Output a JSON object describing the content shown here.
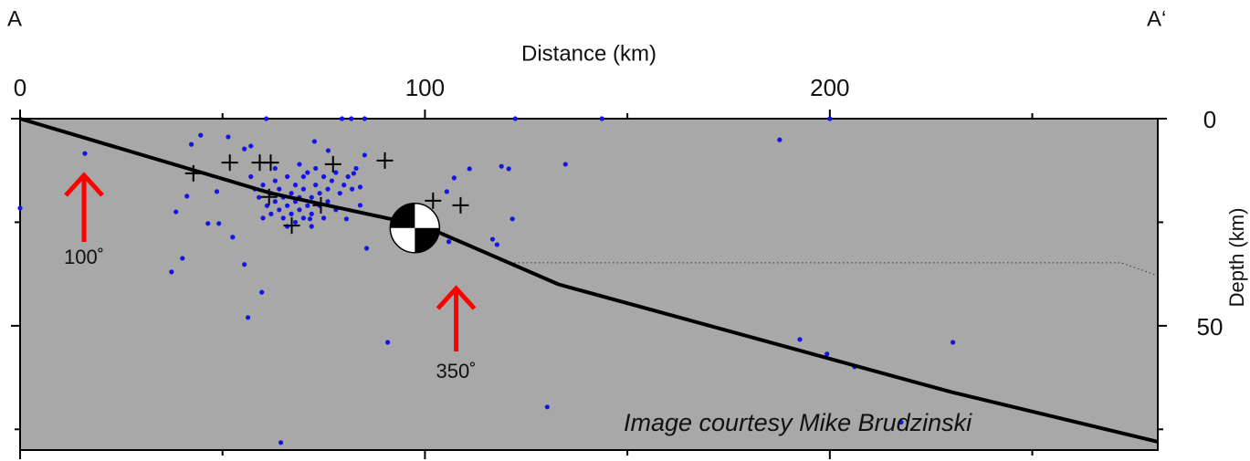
{
  "chart_data": {
    "type": "scatter",
    "x_label": "Distance (km)",
    "y_label": "Depth (km)",
    "corner_labels": [
      "A",
      "A‘"
    ],
    "credit": "Image courtesy Mike Brudzinski",
    "xlim": [
      0,
      281
    ],
    "ylim": [
      0,
      80
    ],
    "y_inverted": true,
    "xticks": [
      0,
      100,
      200
    ],
    "xminorticks": [
      50,
      150,
      250
    ],
    "yticks": [
      0,
      50
    ],
    "yminorticks": [
      25,
      75
    ],
    "background": "#a8a8a8",
    "series": [
      {
        "name": "earthquakes",
        "color": "#1414e6",
        "x": [
          0,
          16.0,
          42.3,
          44.6,
          51.4,
          60.8,
          79.5,
          81.8,
          85.1,
          122.3,
          143.7,
          187.6,
          200.0,
          134.7,
          111.0,
          118.9,
          120.7,
          116.7,
          117.8,
          121.6,
          107.2,
          105.4,
          105.9,
          85.6,
          90.8,
          130.2,
          55.4,
          59.7,
          56.3,
          37.4,
          40.1,
          41.2,
          38.5,
          46.4,
          49.1,
          48.6,
          52.5,
          64.4,
          192.6,
          199.3,
          206.1,
          230.4,
          217.6,
          55.4,
          57.0,
          72.7,
          76.1,
          85.1,
          82.4,
          84.0,
          84.0,
          80.6,
          71.6,
          58,
          59,
          60,
          61,
          62,
          62,
          63,
          63,
          64,
          64,
          65,
          65,
          66,
          66,
          67,
          67,
          68,
          68,
          68,
          69,
          69,
          70,
          70,
          70,
          71,
          71,
          72,
          72,
          73,
          73,
          74,
          74,
          75,
          75,
          76,
          76,
          77,
          78,
          78,
          79,
          80,
          81,
          82,
          83,
          60,
          66,
          72,
          57,
          63,
          69
        ],
        "values": [
          21.6,
          8.4,
          6.2,
          4.0,
          4.4,
          0,
          0,
          0,
          0,
          0,
          0,
          5.1,
          0,
          11.0,
          12.1,
          11.5,
          12.1,
          29.1,
          30.4,
          24.2,
          14.3,
          17.6,
          29.7,
          31.3,
          54.0,
          69.6,
          35.2,
          41.9,
          48.0,
          37.0,
          33.7,
          18.7,
          22.5,
          25.3,
          25.3,
          17.6,
          28.6,
          78.2,
          53.3,
          56.8,
          59.9,
          54.0,
          73.3,
          7.3,
          6.6,
          5.5,
          7.7,
          8.8,
          13.2,
          16.5,
          20.9,
          24.2,
          24.2,
          17,
          19,
          16,
          21,
          18,
          23,
          15,
          20,
          22,
          17,
          19,
          24,
          14,
          21,
          18,
          23,
          16,
          20,
          25,
          22,
          19,
          14,
          17,
          24,
          21,
          13,
          19,
          23,
          16,
          12,
          21,
          18,
          14,
          24,
          17,
          20,
          15,
          22,
          13,
          18,
          16,
          14,
          17,
          12,
          24,
          26,
          26,
          14,
          12,
          11
        ]
      },
      {
        "name": "relocated events",
        "color": "#000000",
        "x": [
          42.8,
          51.8,
          59.2,
          61.9,
          77.3,
          90.1,
          61.5,
          67.1,
          74.3,
          102.0,
          108.8
        ],
        "values": [
          13.2,
          10.6,
          10.6,
          10.6,
          11.0,
          10.1,
          18.9,
          25.8,
          20.9,
          19.8,
          20.9
        ]
      }
    ],
    "slab": {
      "x": [
        0,
        62,
        100,
        133,
        230,
        281
      ],
      "values": [
        0,
        18,
        26,
        40,
        66,
        78
      ]
    },
    "moho": {
      "x": [
        121,
        272,
        281
      ],
      "values": [
        34.8,
        34.8,
        37.9
      ]
    },
    "focal_mechanism": {
      "x": 97.5,
      "value": 26.4
    },
    "annotations": [
      {
        "text": "100˚",
        "x": 15.8
      },
      {
        "text": "350˚",
        "x": 107.7
      }
    ]
  }
}
